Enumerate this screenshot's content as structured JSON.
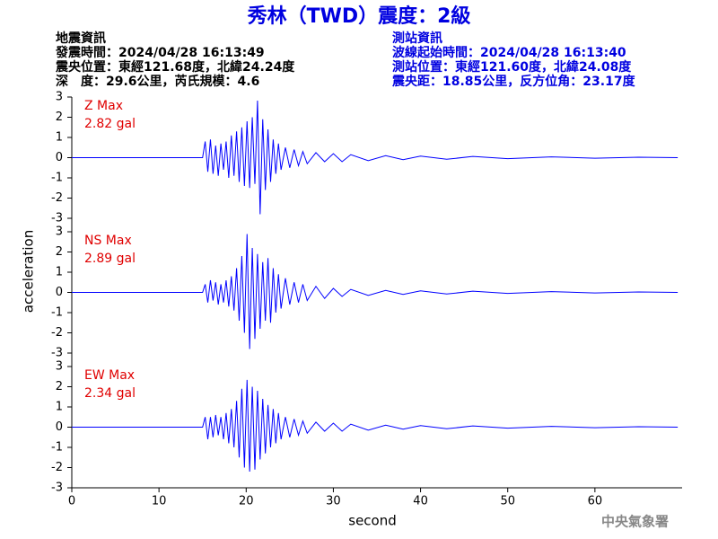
{
  "title": "秀林（TWD）震度：2級",
  "event_info": {
    "heading": "地震資訊",
    "lines": [
      "發震時間：2024/04/28 16:13:49",
      "震央位置：東經121.68度，北緯24.24度",
      "深　度：29.6公里，芮氏規模：4.6"
    ]
  },
  "station_info": {
    "heading": "測站資訊",
    "lines": [
      "波線起始時間：2024/04/28 16:13:40",
      "測站位置：東經121.60度，北緯24.08度",
      "震央距：18.85公里，反方位角：23.17度"
    ]
  },
  "y_axis_label": "acceleration",
  "footer": "中央氣象署",
  "chart_data": [
    {
      "type": "line",
      "annotation": [
        "Z Max",
        "2.82 gal"
      ],
      "xlim": [
        0,
        70
      ],
      "ylim": [
        -3,
        3
      ],
      "yticks": [
        -3,
        -2,
        -1,
        0,
        1,
        2,
        3
      ],
      "x": [
        0,
        15,
        15.3,
        15.6,
        15.9,
        16.2,
        16.5,
        16.8,
        17.1,
        17.4,
        17.7,
        18,
        18.3,
        18.6,
        18.9,
        19.2,
        19.5,
        19.8,
        20.1,
        20.4,
        20.7,
        21,
        21.3,
        21.6,
        21.9,
        22.2,
        22.5,
        22.8,
        23.1,
        23.4,
        23.7,
        24,
        24.5,
        25,
        25.5,
        26,
        26.5,
        27,
        28,
        29,
        30,
        31,
        32,
        34,
        36,
        38,
        40,
        43,
        46,
        50,
        55,
        60,
        65,
        69.5
      ],
      "series": [
        {
          "color": "#0000ff",
          "values": [
            0,
            0,
            0.8,
            -0.7,
            0.9,
            -0.8,
            0.6,
            -0.9,
            0.7,
            -0.6,
            0.8,
            -1.0,
            1.1,
            -0.9,
            1.3,
            -1.2,
            1.5,
            -1.4,
            1.8,
            -1.5,
            2.0,
            -1.3,
            2.82,
            -2.8,
            1.9,
            -1.6,
            1.4,
            -1.2,
            0.9,
            -0.8,
            0.7,
            -0.6,
            0.5,
            -0.5,
            0.4,
            -0.4,
            0.3,
            -0.3,
            0.25,
            -0.2,
            0.2,
            -0.2,
            0.15,
            -0.15,
            0.1,
            -0.1,
            0.08,
            -0.08,
            0.06,
            -0.05,
            0.04,
            -0.03,
            0.02,
            0
          ]
        }
      ]
    },
    {
      "type": "line",
      "annotation": [
        "NS Max",
        "2.89 gal"
      ],
      "xlim": [
        0,
        70
      ],
      "ylim": [
        -3,
        3
      ],
      "yticks": [
        -3,
        -2,
        -1,
        0,
        1,
        2,
        3
      ],
      "x": [
        0,
        15,
        15.3,
        15.6,
        15.9,
        16.2,
        16.5,
        16.8,
        17.1,
        17.4,
        17.7,
        18,
        18.3,
        18.6,
        18.9,
        19.2,
        19.5,
        19.8,
        20.1,
        20.4,
        20.7,
        21,
        21.3,
        21.6,
        21.9,
        22.2,
        22.5,
        22.8,
        23.1,
        23.4,
        23.7,
        24,
        24.5,
        25,
        25.5,
        26,
        26.5,
        27,
        28,
        29,
        30,
        31,
        32,
        34,
        36,
        38,
        40,
        43,
        46,
        50,
        55,
        60,
        65,
        69.5
      ],
      "series": [
        {
          "color": "#0000ff",
          "values": [
            0,
            0,
            0.4,
            -0.5,
            0.6,
            -0.4,
            0.5,
            -0.6,
            0.4,
            -0.5,
            0.6,
            -0.7,
            0.8,
            -0.9,
            1.2,
            -1.4,
            1.8,
            -2.0,
            2.89,
            -2.8,
            2.2,
            -2.3,
            1.9,
            -1.8,
            1.5,
            -1.4,
            1.7,
            -1.5,
            1.2,
            -1.0,
            0.9,
            -0.8,
            0.7,
            -0.6,
            0.5,
            -0.5,
            0.4,
            -0.4,
            0.3,
            -0.3,
            0.2,
            -0.2,
            0.15,
            -0.15,
            0.1,
            -0.1,
            0.08,
            -0.08,
            0.06,
            -0.05,
            0.04,
            -0.03,
            0.02,
            0
          ]
        }
      ]
    },
    {
      "type": "line",
      "annotation": [
        "EW Max",
        "2.34 gal"
      ],
      "xlim": [
        0,
        70
      ],
      "ylim": [
        -3,
        3
      ],
      "yticks": [
        -3,
        -2,
        -1,
        0,
        1,
        2,
        3
      ],
      "xticks": [
        0,
        10,
        20,
        30,
        40,
        50,
        60
      ],
      "xlabel": "second",
      "x": [
        0,
        15,
        15.3,
        15.6,
        15.9,
        16.2,
        16.5,
        16.8,
        17.1,
        17.4,
        17.7,
        18,
        18.3,
        18.6,
        18.9,
        19.2,
        19.5,
        19.8,
        20.1,
        20.4,
        20.7,
        21,
        21.3,
        21.6,
        21.9,
        22.2,
        22.5,
        22.8,
        23.1,
        23.4,
        23.7,
        24,
        24.5,
        25,
        25.5,
        26,
        26.5,
        27,
        28,
        29,
        30,
        31,
        32,
        34,
        36,
        38,
        40,
        43,
        46,
        50,
        55,
        60,
        65,
        69.5
      ],
      "series": [
        {
          "color": "#0000ff",
          "values": [
            0,
            0,
            0.5,
            -0.6,
            0.5,
            -0.5,
            0.6,
            -0.4,
            0.5,
            -0.6,
            0.7,
            -0.8,
            0.9,
            -1.0,
            1.3,
            -1.5,
            1.9,
            -2.0,
            2.34,
            -2.2,
            2.0,
            -2.1,
            1.8,
            -1.6,
            1.4,
            -1.3,
            1.1,
            -1.0,
            0.9,
            -0.8,
            0.7,
            -0.6,
            0.5,
            -0.5,
            0.4,
            -0.4,
            0.3,
            -0.3,
            0.25,
            -0.2,
            0.2,
            -0.2,
            0.15,
            -0.15,
            0.1,
            -0.1,
            0.08,
            -0.08,
            0.06,
            -0.05,
            0.04,
            -0.03,
            0.02,
            0
          ]
        }
      ]
    }
  ]
}
